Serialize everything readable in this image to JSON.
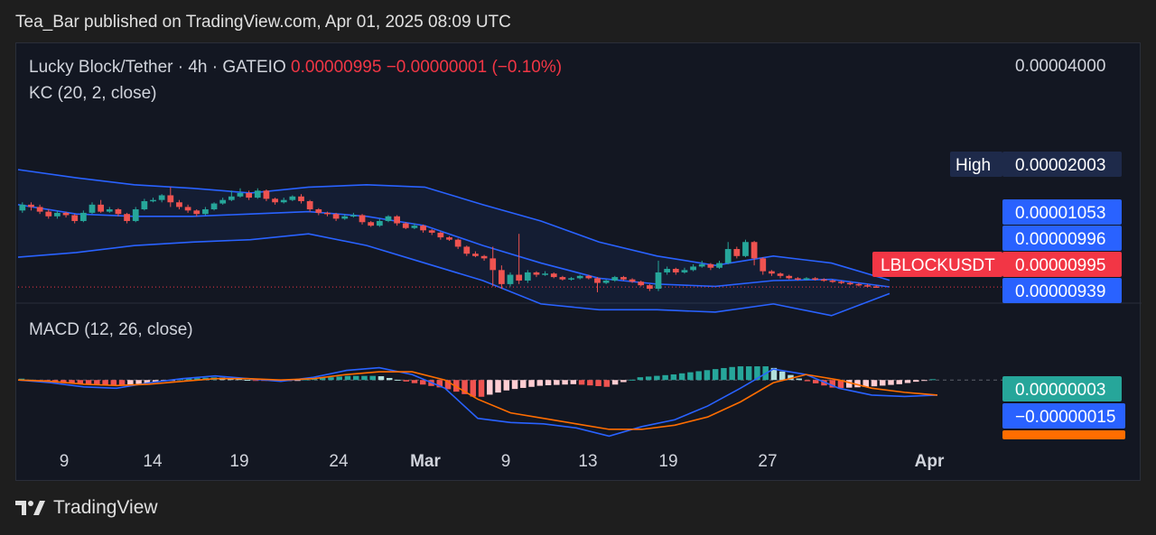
{
  "header": {
    "published_text": "Tea_Bar published on TradingView.com, Apr 01, 2025 08:09 UTC"
  },
  "footer": {
    "brand": "TradingView"
  },
  "colors": {
    "background": "#131722",
    "up": "#26a69a",
    "down": "#ef5350",
    "channel": "#2962ff",
    "macd_line": "#2962ff",
    "signal_line": "#ff6d00",
    "hist_up_strong": "#26a69a",
    "hist_up_weak": "#b2dfdb",
    "hist_down_strong": "#ef5350",
    "hist_down_weak": "#ffcdd2",
    "axis_text": "#d1d4dc"
  },
  "chart_data": [
    {
      "type": "candlestick",
      "symbol": "Lucky Block/Tether",
      "interval": "4h",
      "exchange": "GATEIO",
      "price_text": "0.00000995",
      "change_text": "−0.00000001 (−0.10%)",
      "indicator": "KC (20, 2, close)",
      "y_axis_top_label": "0.00004000",
      "high_label": "High",
      "high_value": "0.00002003",
      "symbol_tag": "LBLOCKUSDT",
      "price_labels": [
        {
          "value": "0.00001053",
          "color": "#2962ff"
        },
        {
          "value": "0.00000996",
          "color": "#2962ff"
        },
        {
          "value": "0.00000995",
          "color": "#f23645"
        },
        {
          "value": "0.00000939",
          "color": "#2962ff"
        }
      ],
      "x_ticks": [
        "9",
        "14",
        "19",
        "24",
        "Mar",
        "9",
        "13",
        "19",
        "27",
        "Apr"
      ],
      "last_price": 9.95e-06,
      "keltner": {
        "upper": [
          2e-05,
          1.93e-05,
          1.87e-05,
          1.84e-05,
          1.8e-05,
          1.85e-05,
          1.87e-05,
          1.85e-05,
          1.7e-05,
          1.56e-05,
          1.38e-05,
          1.26e-05,
          1.18e-05,
          1.26e-05,
          1.2e-05,
          1.053e-05
        ],
        "middle": [
          1.7e-05,
          1.62e-05,
          1.6e-05,
          1.6e-05,
          1.62e-05,
          1.64e-05,
          1.6e-05,
          1.52e-05,
          1.35e-05,
          1.2e-05,
          1.07e-05,
          1.02e-05,
          1e-05,
          1.05e-05,
          1.06e-05,
          9.96e-06
        ],
        "lower": [
          1.25e-05,
          1.29e-05,
          1.35e-05,
          1.38e-05,
          1.4e-05,
          1.45e-05,
          1.35e-05,
          1.2e-05,
          1.05e-05,
          8.5e-06,
          8e-06,
          8e-06,
          7.8e-06,
          8.5e-06,
          7.5e-06,
          9.39e-06
        ]
      },
      "candles": [
        [
          1.65e-05,
          1.7e-05,
          1.72e-05,
          1.63e-05
        ],
        [
          1.7e-05,
          1.68e-05,
          1.72e-05,
          1.65e-05
        ],
        [
          1.68e-05,
          1.64e-05,
          1.7e-05,
          1.62e-05
        ],
        [
          1.64e-05,
          1.6e-05,
          1.66e-05,
          1.58e-05
        ],
        [
          1.6e-05,
          1.63e-05,
          1.65e-05,
          1.58e-05
        ],
        [
          1.63e-05,
          1.61e-05,
          1.64e-05,
          1.59e-05
        ],
        [
          1.61e-05,
          1.56e-05,
          1.62e-05,
          1.54e-05
        ],
        [
          1.56e-05,
          1.63e-05,
          1.65e-05,
          1.55e-05
        ],
        [
          1.63e-05,
          1.7e-05,
          1.72e-05,
          1.62e-05
        ],
        [
          1.7e-05,
          1.64e-05,
          1.74e-05,
          1.63e-05
        ],
        [
          1.64e-05,
          1.66e-05,
          1.68e-05,
          1.63e-05
        ],
        [
          1.66e-05,
          1.62e-05,
          1.67e-05,
          1.6e-05
        ],
        [
          1.62e-05,
          1.56e-05,
          1.63e-05,
          1.54e-05
        ],
        [
          1.56e-05,
          1.66e-05,
          1.68e-05,
          1.55e-05
        ],
        [
          1.66e-05,
          1.73e-05,
          1.75e-05,
          1.65e-05
        ],
        [
          1.73e-05,
          1.74e-05,
          1.76e-05,
          1.72e-05
        ],
        [
          1.74e-05,
          1.78e-05,
          1.79e-05,
          1.72e-05
        ],
        [
          1.78e-05,
          1.72e-05,
          1.85e-05,
          1.68e-05
        ],
        [
          1.72e-05,
          1.68e-05,
          1.74e-05,
          1.66e-05
        ],
        [
          1.68e-05,
          1.65e-05,
          1.7e-05,
          1.63e-05
        ],
        [
          1.65e-05,
          1.62e-05,
          1.66e-05,
          1.6e-05
        ],
        [
          1.62e-05,
          1.66e-05,
          1.68e-05,
          1.61e-05
        ],
        [
          1.66e-05,
          1.71e-05,
          1.72e-05,
          1.65e-05
        ],
        [
          1.71e-05,
          1.74e-05,
          1.76e-05,
          1.7e-05
        ],
        [
          1.74e-05,
          1.77e-05,
          1.82e-05,
          1.73e-05
        ],
        [
          1.77e-05,
          1.8e-05,
          1.84e-05,
          1.76e-05
        ],
        [
          1.8e-05,
          1.76e-05,
          1.82e-05,
          1.74e-05
        ],
        [
          1.76e-05,
          1.82e-05,
          1.84e-05,
          1.75e-05
        ],
        [
          1.82e-05,
          1.75e-05,
          1.83e-05,
          1.73e-05
        ],
        [
          1.75e-05,
          1.72e-05,
          1.76e-05,
          1.7e-05
        ],
        [
          1.72e-05,
          1.74e-05,
          1.76e-05,
          1.71e-05
        ],
        [
          1.74e-05,
          1.77e-05,
          1.78e-05,
          1.73e-05
        ],
        [
          1.77e-05,
          1.73e-05,
          1.79e-05,
          1.71e-05
        ],
        [
          1.73e-05,
          1.66e-05,
          1.74e-05,
          1.64e-05
        ],
        [
          1.66e-05,
          1.63e-05,
          1.67e-05,
          1.61e-05
        ],
        [
          1.63e-05,
          1.62e-05,
          1.64e-05,
          1.6e-05
        ],
        [
          1.62e-05,
          1.58e-05,
          1.63e-05,
          1.56e-05
        ],
        [
          1.58e-05,
          1.6e-05,
          1.62e-05,
          1.57e-05
        ],
        [
          1.6e-05,
          1.61e-05,
          1.63e-05,
          1.59e-05
        ],
        [
          1.61e-05,
          1.55e-05,
          1.62e-05,
          1.53e-05
        ],
        [
          1.55e-05,
          1.52e-05,
          1.56e-05,
          1.51e-05
        ],
        [
          1.52e-05,
          1.56e-05,
          1.58e-05,
          1.51e-05
        ],
        [
          1.56e-05,
          1.6e-05,
          1.61e-05,
          1.55e-05
        ],
        [
          1.6e-05,
          1.54e-05,
          1.61e-05,
          1.52e-05
        ],
        [
          1.54e-05,
          1.5e-05,
          1.55e-05,
          1.49e-05
        ],
        [
          1.5e-05,
          1.52e-05,
          1.54e-05,
          1.49e-05
        ],
        [
          1.52e-05,
          1.48e-05,
          1.53e-05,
          1.46e-05
        ],
        [
          1.48e-05,
          1.46e-05,
          1.49e-05,
          1.44e-05
        ],
        [
          1.46e-05,
          1.42e-05,
          1.47e-05,
          1.4e-05
        ],
        [
          1.42e-05,
          1.4e-05,
          1.43e-05,
          1.39e-05
        ],
        [
          1.4e-05,
          1.34e-05,
          1.41e-05,
          1.32e-05
        ],
        [
          1.34e-05,
          1.28e-05,
          1.35e-05,
          1.26e-05
        ],
        [
          1.28e-05,
          1.26e-05,
          1.3e-05,
          1.25e-05
        ],
        [
          1.26e-05,
          1.24e-05,
          1.27e-05,
          1.22e-05
        ],
        [
          1.24e-05,
          1.14e-05,
          1.34e-05,
          1e-05
        ],
        [
          1.14e-05,
          1.02e-05,
          1.18e-05,
          9.8e-06
        ],
        [
          1.02e-05,
          1.1e-05,
          1.12e-05,
          1e-05
        ],
        [
          1.1e-05,
          1.05e-05,
          1.45e-05,
          1.02e-05
        ],
        [
          1.05e-05,
          1.12e-05,
          1.14e-05,
          1.03e-05
        ],
        [
          1.12e-05,
          1.1e-05,
          1.13e-05,
          1.08e-05
        ],
        [
          1.1e-05,
          1.11e-05,
          1.13e-05,
          1.09e-05
        ],
        [
          1.11e-05,
          1.08e-05,
          1.12e-05,
          1.07e-05
        ],
        [
          1.08e-05,
          1.06e-05,
          1.09e-05,
          1.05e-05
        ],
        [
          1.06e-05,
          1.07e-05,
          1.08e-05,
          1.05e-05
        ],
        [
          1.07e-05,
          1.09e-05,
          1.1e-05,
          1.06e-05
        ],
        [
          1.09e-05,
          1.07e-05,
          1.1e-05,
          1.06e-05
        ],
        [
          1.07e-05,
          1.03e-05,
          1.08e-05,
          9.5e-06
        ],
        [
          1.03e-05,
          1.05e-05,
          1.06e-05,
          1.02e-05
        ],
        [
          1.05e-05,
          1.08e-05,
          1.09e-05,
          1.04e-05
        ],
        [
          1.08e-05,
          1.06e-05,
          1.09e-05,
          1.05e-05
        ],
        [
          1.06e-05,
          1.04e-05,
          1.07e-05,
          1.03e-05
        ],
        [
          1.04e-05,
          1.01e-05,
          1.05e-05,
          1e-05
        ],
        [
          1.01e-05,
          9.8e-06,
          1.02e-05,
          9.6e-06
        ],
        [
          9.8e-06,
          1.12e-05,
          1.22e-05,
          9.6e-06
        ],
        [
          1.12e-05,
          1.15e-05,
          1.17e-05,
          1.1e-05
        ],
        [
          1.15e-05,
          1.12e-05,
          1.16e-05,
          1.1e-05
        ],
        [
          1.12e-05,
          1.14e-05,
          1.16e-05,
          1.11e-05
        ],
        [
          1.14e-05,
          1.17e-05,
          1.19e-05,
          1.13e-05
        ],
        [
          1.17e-05,
          1.19e-05,
          1.22e-05,
          1.16e-05
        ],
        [
          1.19e-05,
          1.16e-05,
          1.2e-05,
          1.14e-05
        ],
        [
          1.16e-05,
          1.2e-05,
          1.22e-05,
          1.15e-05
        ],
        [
          1.2e-05,
          1.32e-05,
          1.38e-05,
          1.19e-05
        ],
        [
          1.32e-05,
          1.26e-05,
          1.34e-05,
          1.24e-05
        ],
        [
          1.26e-05,
          1.38e-05,
          1.4e-05,
          1.25e-05
        ],
        [
          1.38e-05,
          1.24e-05,
          1.39e-05,
          1.18e-05
        ],
        [
          1.24e-05,
          1.13e-05,
          1.25e-05,
          1.1e-05
        ],
        [
          1.13e-05,
          1.11e-05,
          1.14e-05,
          1.09e-05
        ],
        [
          1.11e-05,
          1.09e-05,
          1.12e-05,
          1.07e-05
        ],
        [
          1.09e-05,
          1.07e-05,
          1.1e-05,
          1.06e-05
        ],
        [
          1.07e-05,
          1.06e-05,
          1.08e-05,
          1.05e-05
        ],
        [
          1.06e-05,
          1.07e-05,
          1.08e-05,
          1.05e-05
        ],
        [
          1.07e-05,
          1.06e-05,
          1.08e-05,
          1.05e-05
        ],
        [
          1.06e-05,
          1.05e-05,
          1.07e-05,
          1.04e-05
        ],
        [
          1.05e-05,
          1.04e-05,
          1.06e-05,
          1.03e-05
        ],
        [
          1.04e-05,
          1.03e-05,
          1.05e-05,
          1.02e-05
        ],
        [
          1.03e-05,
          1.02e-05,
          1.04e-05,
          1.01e-05
        ],
        [
          1.02e-05,
          1.01e-05,
          1.03e-05,
          1e-05
        ],
        [
          1.01e-05,
          1e-05,
          1.02e-05,
          9.9e-06
        ],
        [
          1e-05,
          9.95e-06,
          1.01e-05,
          9.9e-06
        ]
      ]
    },
    {
      "type": "macd",
      "indicator": "MACD (12, 26, close)",
      "labels": [
        {
          "value": "0.00000003",
          "color": "#26a69a"
        },
        {
          "value": "−0.00000015",
          "color": "#2962ff"
        }
      ],
      "x_ticks": [
        "9",
        "14",
        "19",
        "24",
        "Mar",
        "9",
        "13",
        "19",
        "27",
        "Apr"
      ],
      "macd": [
        0.0,
        -0.1,
        -0.25,
        -0.3,
        -0.1,
        0.05,
        0.15,
        0.05,
        -0.05,
        0.1,
        0.35,
        0.45,
        0.2,
        -0.3,
        -1.4,
        -1.55,
        -1.6,
        -1.75,
        -2.05,
        -1.7,
        -1.45,
        -0.95,
        -0.3,
        0.4,
        0.2,
        -0.3,
        -0.55,
        -0.6,
        -0.55
      ],
      "signal": [
        0.0,
        -0.05,
        -0.15,
        -0.2,
        -0.15,
        -0.05,
        0.05,
        0.05,
        0.0,
        0.05,
        0.2,
        0.3,
        0.3,
        0.0,
        -0.7,
        -1.2,
        -1.4,
        -1.6,
        -1.8,
        -1.8,
        -1.65,
        -1.35,
        -0.8,
        -0.1,
        0.2,
        0.0,
        -0.3,
        -0.45,
        -0.55
      ],
      "histogram": [
        0.05,
        -0.1,
        -0.15,
        -0.2,
        -0.1,
        0.05,
        0.1,
        0.0,
        -0.05,
        0.05,
        0.15,
        0.15,
        -0.1,
        -0.3,
        -0.65,
        -0.35,
        -0.2,
        -0.15,
        -0.25,
        0.1,
        0.2,
        0.35,
        0.5,
        0.5,
        0.0,
        -0.3,
        -0.25,
        -0.15,
        0.03
      ]
    }
  ]
}
